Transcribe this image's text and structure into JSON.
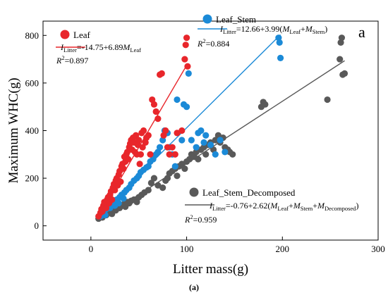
{
  "chart_data": {
    "type": "scatter",
    "panel_label": "a",
    "xlabel": "Litter mass(g)",
    "ylabel": "Maximum WHC(g)",
    "xlim": [
      -50,
      300
    ],
    "ylim": [
      -60,
      860
    ],
    "x_ticks": [
      0,
      100,
      200,
      300
    ],
    "y_ticks": [
      0,
      200,
      400,
      600,
      800
    ],
    "grid": false,
    "series": [
      {
        "name": "Leaf",
        "color": "#e8262b",
        "equation": {
          "prefix": "I",
          "sub": "Litter",
          "text": "=-14.75+6.89",
          "terms": [
            [
              "M",
              "Leaf"
            ]
          ]
        },
        "r2": "=0.897",
        "fit": {
          "intercept": -14.75,
          "slope": 6.89,
          "x_range": [
            8,
            101
          ]
        },
        "points": [
          [
            8,
            40
          ],
          [
            10,
            55
          ],
          [
            11,
            70
          ],
          [
            12,
            60
          ],
          [
            13,
            85
          ],
          [
            14,
            100
          ],
          [
            15,
            90
          ],
          [
            16,
            75
          ],
          [
            17,
            110
          ],
          [
            18,
            120
          ],
          [
            19,
            95
          ],
          [
            20,
            130
          ],
          [
            21,
            145
          ],
          [
            22,
            110
          ],
          [
            23,
            160
          ],
          [
            24,
            175
          ],
          [
            25,
            150
          ],
          [
            26,
            190
          ],
          [
            27,
            200
          ],
          [
            28,
            170
          ],
          [
            29,
            215
          ],
          [
            30,
            230
          ],
          [
            31,
            185
          ],
          [
            32,
            250
          ],
          [
            33,
            260
          ],
          [
            34,
            240
          ],
          [
            35,
            290
          ],
          [
            36,
            270
          ],
          [
            37,
            300
          ],
          [
            38,
            310
          ],
          [
            39,
            280
          ],
          [
            40,
            330
          ],
          [
            41,
            345
          ],
          [
            42,
            360
          ],
          [
            43,
            320
          ],
          [
            44,
            370
          ],
          [
            45,
            350
          ],
          [
            46,
            310
          ],
          [
            47,
            380
          ],
          [
            48,
            300
          ],
          [
            49,
            340
          ],
          [
            50,
            360
          ],
          [
            51,
            260
          ],
          [
            52,
            300
          ],
          [
            53,
            390
          ],
          [
            54,
            330
          ],
          [
            55,
            400
          ],
          [
            57,
            350
          ],
          [
            58,
            370
          ],
          [
            60,
            380
          ],
          [
            62,
            300
          ],
          [
            64,
            530
          ],
          [
            66,
            510
          ],
          [
            68,
            480
          ],
          [
            70,
            450
          ],
          [
            72,
            635
          ],
          [
            74,
            640
          ],
          [
            76,
            380
          ],
          [
            78,
            400
          ],
          [
            80,
            330
          ],
          [
            82,
            300
          ],
          [
            85,
            330
          ],
          [
            88,
            300
          ],
          [
            90,
            390
          ],
          [
            95,
            400
          ],
          [
            98,
            700
          ],
          [
            99,
            760
          ],
          [
            100,
            790
          ],
          [
            101,
            670
          ]
        ]
      },
      {
        "name": "Leaf_Stem",
        "color": "#1b8ad7",
        "equation": {
          "prefix": "I",
          "sub": "Litter",
          "text": "=12.66+3.99(",
          "terms": [
            [
              "M",
              "Leaf"
            ],
            [
              "M",
              "Stem"
            ]
          ],
          "close": ")"
        },
        "r2": "=0.884",
        "fit": {
          "intercept": 12.66,
          "slope": 3.99,
          "x_range": [
            10,
            198
          ]
        },
        "points": [
          [
            10,
            40
          ],
          [
            12,
            50
          ],
          [
            14,
            60
          ],
          [
            15,
            45
          ],
          [
            16,
            70
          ],
          [
            18,
            80
          ],
          [
            20,
            75
          ],
          [
            22,
            90
          ],
          [
            24,
            100
          ],
          [
            25,
            85
          ],
          [
            27,
            110
          ],
          [
            29,
            95
          ],
          [
            30,
            120
          ],
          [
            32,
            130
          ],
          [
            34,
            115
          ],
          [
            35,
            140
          ],
          [
            37,
            150
          ],
          [
            40,
            160
          ],
          [
            42,
            175
          ],
          [
            45,
            190
          ],
          [
            48,
            200
          ],
          [
            50,
            210
          ],
          [
            52,
            225
          ],
          [
            55,
            235
          ],
          [
            58,
            245
          ],
          [
            60,
            250
          ],
          [
            62,
            270
          ],
          [
            65,
            280
          ],
          [
            68,
            300
          ],
          [
            70,
            310
          ],
          [
            72,
            330
          ],
          [
            75,
            360
          ],
          [
            77,
            400
          ],
          [
            80,
            390
          ],
          [
            82,
            330
          ],
          [
            85,
            300
          ],
          [
            88,
            250
          ],
          [
            90,
            530
          ],
          [
            95,
            360
          ],
          [
            97,
            510
          ],
          [
            100,
            500
          ],
          [
            102,
            640
          ],
          [
            105,
            360
          ],
          [
            110,
            330
          ],
          [
            112,
            390
          ],
          [
            115,
            400
          ],
          [
            118,
            350
          ],
          [
            120,
            380
          ],
          [
            125,
            340
          ],
          [
            130,
            300
          ],
          [
            135,
            360
          ],
          [
            140,
            310
          ],
          [
            196,
            790
          ],
          [
            197,
            770
          ],
          [
            198,
            705
          ]
        ]
      },
      {
        "name": "Leaf_Stem_Decomposed",
        "color": "#595959",
        "equation": {
          "prefix": "I",
          "sub": "Litter",
          "text": "=-0.76+2.62(",
          "terms": [
            [
              "M",
              "Leaf"
            ],
            [
              "M",
              "Stem"
            ],
            [
              "M",
              "Decomposed"
            ]
          ],
          "close": ")"
        },
        "r2": "=0.959",
        "fit": {
          "intercept": -0.76,
          "slope": 2.62,
          "x_range": [
            8,
            265
          ]
        },
        "points": [
          [
            8,
            30
          ],
          [
            10,
            40
          ],
          [
            12,
            35
          ],
          [
            14,
            50
          ],
          [
            16,
            45
          ],
          [
            18,
            55
          ],
          [
            20,
            60
          ],
          [
            22,
            50
          ],
          [
            24,
            70
          ],
          [
            26,
            65
          ],
          [
            28,
            80
          ],
          [
            30,
            75
          ],
          [
            32,
            85
          ],
          [
            34,
            90
          ],
          [
            36,
            80
          ],
          [
            38,
            100
          ],
          [
            40,
            95
          ],
          [
            42,
            105
          ],
          [
            45,
            110
          ],
          [
            48,
            100
          ],
          [
            50,
            120
          ],
          [
            53,
            130
          ],
          [
            56,
            140
          ],
          [
            60,
            150
          ],
          [
            63,
            180
          ],
          [
            66,
            200
          ],
          [
            70,
            170
          ],
          [
            75,
            160
          ],
          [
            78,
            190
          ],
          [
            80,
            200
          ],
          [
            82,
            220
          ],
          [
            85,
            230
          ],
          [
            88,
            240
          ],
          [
            90,
            210
          ],
          [
            92,
            250
          ],
          [
            95,
            260
          ],
          [
            98,
            240
          ],
          [
            100,
            270
          ],
          [
            103,
            280
          ],
          [
            105,
            300
          ],
          [
            108,
            290
          ],
          [
            110,
            310
          ],
          [
            112,
            280
          ],
          [
            115,
            320
          ],
          [
            118,
            330
          ],
          [
            120,
            300
          ],
          [
            122,
            340
          ],
          [
            125,
            350
          ],
          [
            128,
            320
          ],
          [
            130,
            360
          ],
          [
            133,
            380
          ],
          [
            135,
            350
          ],
          [
            138,
            370
          ],
          [
            140,
            330
          ],
          [
            143,
            320
          ],
          [
            145,
            310
          ],
          [
            148,
            300
          ],
          [
            178,
            500
          ],
          [
            180,
            520
          ],
          [
            182,
            510
          ],
          [
            247,
            530
          ],
          [
            260,
            700
          ],
          [
            261,
            770
          ],
          [
            262,
            790
          ],
          [
            263,
            635
          ],
          [
            265,
            640
          ]
        ]
      }
    ]
  },
  "caption": "(a)"
}
